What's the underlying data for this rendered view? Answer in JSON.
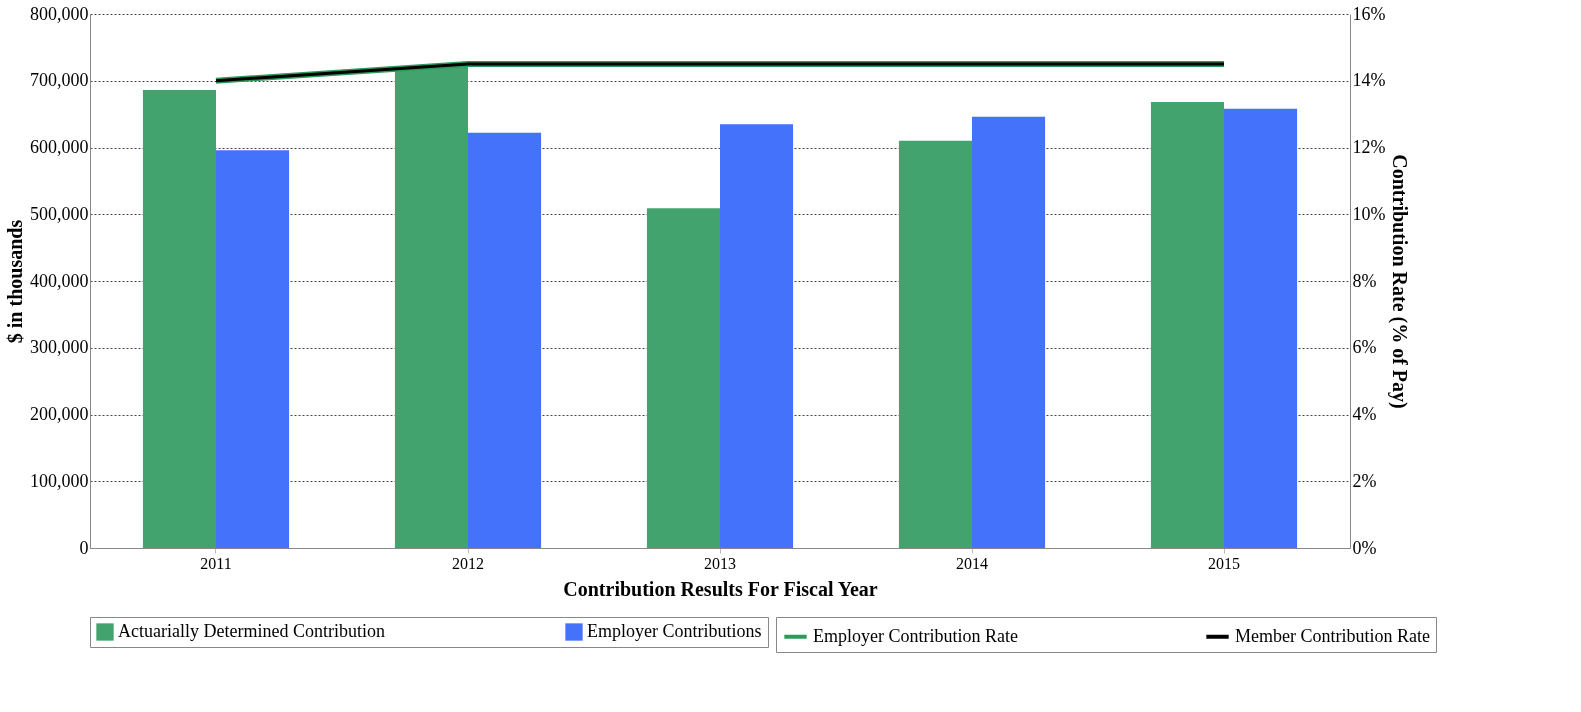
{
  "chart_data": {
    "type": "bar",
    "xlabel": "Contribution Results For Fiscal Year",
    "ylabel": "$ in thousands",
    "y2label": "Contribution Rate (% of Pay)",
    "categories": [
      "2011",
      "2012",
      "2013",
      "2014",
      "2015"
    ],
    "series": [
      {
        "name": "Actuarially Determined Contribution",
        "color": "#43a36f",
        "values": [
          686000,
          722000,
          509000,
          610000,
          668000
        ]
      },
      {
        "name": "Employer Contributions",
        "color": "#4472fb",
        "values": [
          596000,
          622000,
          635000,
          646000,
          658000
        ]
      },
      {
        "name": "Employer Contribution Rate",
        "type": "line",
        "axis": "y2",
        "color": "#2e9a5a",
        "values": [
          14.0,
          14.5,
          14.5,
          14.5,
          14.5
        ]
      },
      {
        "name": "Member Contribution Rate",
        "type": "line",
        "axis": "y2",
        "color": "#000000",
        "values": [
          14.0,
          14.5,
          14.5,
          14.5,
          14.5
        ]
      }
    ],
    "ylim": [
      0,
      800000
    ],
    "yticks": [
      0,
      {
        "value": 100000,
        "label": "100,000"
      },
      {
        "value": 200000,
        "label": "200,000"
      },
      {
        "value": 300000,
        "label": "300,000"
      },
      {
        "value": 400000,
        "label": "400,000"
      },
      {
        "value": 500000,
        "label": "500,000"
      },
      {
        "value": 600000,
        "label": "600,000"
      },
      {
        "value": 700000,
        "label": "700,000"
      },
      {
        "value": 800000,
        "label": "800,000"
      }
    ],
    "y2lim": [
      0,
      16
    ],
    "y2ticks": [
      {
        "value": 0,
        "label": "0%"
      },
      {
        "value": 2,
        "label": "2%"
      },
      {
        "value": 4,
        "label": "4%"
      },
      {
        "value": 6,
        "label": "6%"
      },
      {
        "value": 8,
        "label": "8%"
      },
      {
        "value": 10,
        "label": "10%"
      },
      {
        "value": 12,
        "label": "12%"
      },
      {
        "value": 14,
        "label": "14%"
      },
      {
        "value": 16,
        "label": "16%"
      }
    ],
    "grid": "y",
    "legend": "bottom"
  }
}
